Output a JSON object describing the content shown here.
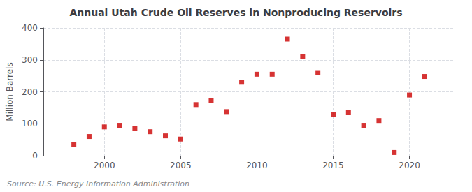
{
  "chart_data": {
    "type": "scatter",
    "title": "Annual Utah Crude Oil Reserves in Nonproducing Reservoirs",
    "ylabel": "Million Barrels",
    "annotations": [
      "Source: U.S. Energy Information Administration"
    ],
    "x": [
      1998,
      1999,
      2000,
      2001,
      2002,
      2003,
      2004,
      2005,
      2006,
      2007,
      2008,
      2009,
      2010,
      2011,
      2012,
      2013,
      2014,
      2015,
      2016,
      2017,
      2018,
      2019,
      2020,
      2021
    ],
    "values": [
      35,
      60,
      90,
      95,
      85,
      75,
      62,
      52,
      160,
      173,
      138,
      230,
      255,
      255,
      365,
      310,
      260,
      130,
      135,
      95,
      110,
      10,
      190,
      248
    ],
    "color": "#cc0000",
    "marker": "square",
    "xlim": [
      1996,
      2023
    ],
    "xticks": [
      2000,
      2005,
      2010,
      2015,
      2020
    ],
    "ylim": [
      0,
      400
    ],
    "yticks": [
      0,
      100,
      200,
      300,
      400
    ],
    "grid": true
  }
}
